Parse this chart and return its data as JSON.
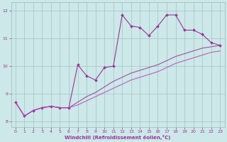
{
  "xlabel": "Windchill (Refroidissement éolien,°C)",
  "xlim": [
    -0.5,
    23.5
  ],
  "ylim": [
    7.8,
    12.3
  ],
  "yticks": [
    8,
    9,
    10,
    11,
    12
  ],
  "xticks": [
    0,
    1,
    2,
    3,
    4,
    5,
    6,
    7,
    8,
    9,
    10,
    11,
    12,
    13,
    14,
    15,
    16,
    17,
    18,
    19,
    20,
    21,
    22,
    23
  ],
  "bg_color": "#cce8e8",
  "line_color": "#993399",
  "line1_x": [
    0,
    1,
    2,
    3,
    4,
    5,
    6,
    7,
    8,
    9,
    10,
    11,
    12,
    13,
    14,
    15,
    16,
    17,
    18,
    19,
    20,
    21,
    22,
    23
  ],
  "line1_y": [
    8.7,
    8.2,
    8.4,
    8.5,
    8.55,
    8.5,
    8.5,
    10.05,
    9.65,
    9.5,
    9.95,
    10.0,
    11.85,
    11.45,
    11.4,
    11.1,
    11.45,
    11.85,
    11.85,
    11.3,
    11.3,
    11.15,
    10.85,
    10.75
  ],
  "line2_x": [
    0,
    1,
    2,
    3,
    4,
    5,
    6,
    7,
    8,
    9,
    10,
    11,
    12,
    13,
    14,
    15,
    16,
    17,
    18,
    19,
    20,
    21,
    22,
    23
  ],
  "line2_y": [
    8.7,
    8.2,
    8.4,
    8.5,
    8.55,
    8.5,
    8.5,
    8.7,
    8.9,
    9.05,
    9.25,
    9.45,
    9.6,
    9.75,
    9.85,
    9.95,
    10.05,
    10.2,
    10.35,
    10.45,
    10.55,
    10.65,
    10.7,
    10.75
  ],
  "line3_x": [
    0,
    1,
    2,
    3,
    4,
    5,
    6,
    7,
    8,
    9,
    10,
    11,
    12,
    13,
    14,
    15,
    16,
    17,
    18,
    19,
    20,
    21,
    22,
    23
  ],
  "line3_y": [
    8.7,
    8.2,
    8.4,
    8.5,
    8.55,
    8.5,
    8.5,
    8.6,
    8.75,
    8.9,
    9.05,
    9.2,
    9.35,
    9.5,
    9.6,
    9.7,
    9.8,
    9.95,
    10.1,
    10.2,
    10.3,
    10.4,
    10.5,
    10.55
  ]
}
